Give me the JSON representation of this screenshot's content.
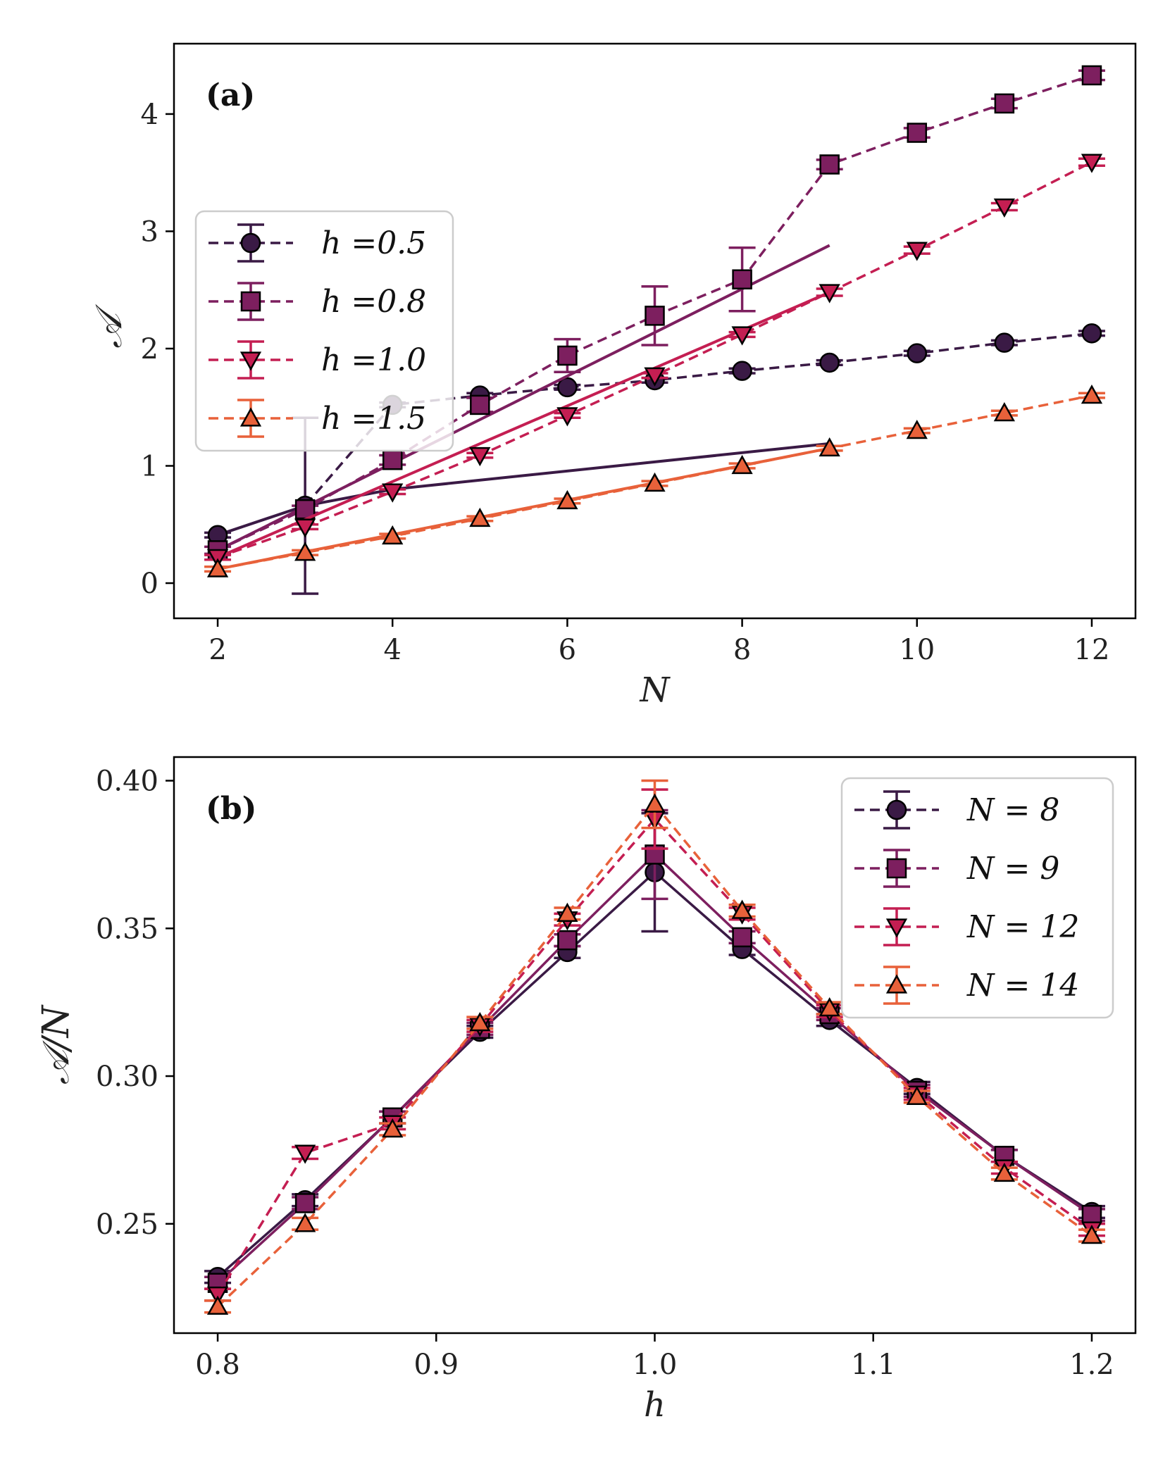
{
  "chart_data": [
    {
      "type": "line",
      "panel_label": "(a)",
      "xlabel": "N",
      "ylabel": "𝒜",
      "xlim": [
        1.5,
        12.5
      ],
      "ylim": [
        -0.3,
        4.6
      ],
      "xticks": [
        2,
        4,
        6,
        8,
        10,
        12
      ],
      "yticks": [
        0,
        1,
        2,
        3,
        4
      ],
      "xtick_labels": [
        "2",
        "4",
        "6",
        "8",
        "10",
        "12"
      ],
      "ytick_labels": [
        "0",
        "1",
        "2",
        "3",
        "4"
      ],
      "legend_position": "center-left",
      "series": [
        {
          "name": "h =0.5",
          "color": "#3a1a45",
          "marker": "circle",
          "x": [
            2,
            3,
            4,
            5,
            6,
            7,
            8,
            9,
            10,
            11,
            12
          ],
          "y": [
            0.41,
            0.66,
            1.52,
            1.6,
            1.67,
            1.73,
            1.81,
            1.88,
            1.96,
            2.05,
            2.13
          ],
          "err": [
            0.02,
            0.75,
            0.02,
            0.02,
            0.02,
            0.02,
            0.02,
            0.02,
            0.02,
            0.02,
            0.02
          ],
          "fit": {
            "x": [
              2,
              3,
              4,
              9
            ],
            "y": [
              0.41,
              0.66,
              0.8,
              1.19
            ]
          }
        },
        {
          "name": "h =0.8",
          "color": "#7d1f5f",
          "marker": "square",
          "x": [
            2,
            3,
            4,
            5,
            6,
            7,
            8,
            9,
            10,
            11,
            12
          ],
          "y": [
            0.28,
            0.63,
            1.05,
            1.52,
            1.94,
            2.28,
            2.59,
            3.57,
            3.84,
            4.09,
            4.33
          ],
          "err": [
            0.03,
            0.03,
            0.04,
            0.06,
            0.14,
            0.25,
            0.27,
            0.04,
            0.04,
            0.04,
            0.04
          ],
          "fit": {
            "x": [
              2,
              9
            ],
            "y": [
              0.28,
              2.88
            ]
          }
        },
        {
          "name": "h =1.0",
          "color": "#c41e52",
          "marker": "triangle-down",
          "x": [
            2,
            3,
            4,
            5,
            6,
            7,
            8,
            9,
            10,
            11,
            12
          ],
          "y": [
            0.22,
            0.48,
            0.78,
            1.09,
            1.43,
            1.77,
            2.12,
            2.48,
            2.84,
            3.21,
            3.59
          ],
          "err": [
            0.02,
            0.02,
            0.02,
            0.02,
            0.02,
            0.02,
            0.02,
            0.03,
            0.03,
            0.03,
            0.03
          ],
          "fit": {
            "x": [
              2,
              9
            ],
            "y": [
              0.22,
              2.48
            ]
          }
        },
        {
          "name": "h =1.5",
          "color": "#e8613a",
          "marker": "triangle-up",
          "x": [
            2,
            3,
            4,
            5,
            6,
            7,
            8,
            9,
            10,
            11,
            12
          ],
          "y": [
            0.12,
            0.26,
            0.4,
            0.55,
            0.7,
            0.85,
            1.0,
            1.15,
            1.3,
            1.45,
            1.6
          ],
          "err": [
            0.02,
            0.02,
            0.02,
            0.02,
            0.02,
            0.02,
            0.02,
            0.02,
            0.02,
            0.02,
            0.02
          ],
          "fit": {
            "x": [
              2,
              9
            ],
            "y": [
              0.12,
              1.15
            ]
          }
        }
      ]
    },
    {
      "type": "line",
      "panel_label": "(b)",
      "xlabel": "h",
      "ylabel": "𝒜/N",
      "xlim": [
        0.78,
        1.22
      ],
      "ylim": [
        0.213,
        0.408
      ],
      "xticks": [
        0.8,
        0.9,
        1.0,
        1.1,
        1.2
      ],
      "yticks": [
        0.25,
        0.3,
        0.35,
        0.4
      ],
      "xtick_labels": [
        "0.8",
        "0.9",
        "1.0",
        "1.1",
        "1.2"
      ],
      "ytick_labels": [
        "0.25",
        "0.30",
        "0.35",
        "0.40"
      ],
      "legend_position": "top-right",
      "series": [
        {
          "name": "N = 8",
          "color": "#3a1a45",
          "marker": "circle",
          "solid": true,
          "x": [
            0.8,
            0.84,
            0.88,
            0.92,
            0.96,
            1.0,
            1.04,
            1.08,
            1.12,
            1.16,
            1.2
          ],
          "y": [
            0.232,
            0.258,
            0.286,
            0.315,
            0.342,
            0.369,
            0.343,
            0.319,
            0.296,
            0.273,
            0.254
          ],
          "err": [
            0.002,
            0.002,
            0.002,
            0.002,
            0.002,
            0.02,
            0.002,
            0.002,
            0.002,
            0.002,
            0.002
          ]
        },
        {
          "name": "N = 9",
          "color": "#7d1f5f",
          "marker": "square",
          "solid": true,
          "x": [
            0.8,
            0.84,
            0.88,
            0.92,
            0.96,
            1.0,
            1.04,
            1.08,
            1.12,
            1.16,
            1.2
          ],
          "y": [
            0.23,
            0.257,
            0.286,
            0.316,
            0.346,
            0.375,
            0.347,
            0.321,
            0.295,
            0.273,
            0.253
          ],
          "err": [
            0.002,
            0.002,
            0.002,
            0.002,
            0.002,
            0.015,
            0.002,
            0.002,
            0.002,
            0.002,
            0.002
          ]
        },
        {
          "name": "N = 12",
          "color": "#c41e52",
          "marker": "triangle-down",
          "solid": false,
          "x": [
            0.8,
            0.84,
            0.88,
            0.92,
            0.96,
            1.0,
            1.04,
            1.08,
            1.12,
            1.16,
            1.2
          ],
          "y": [
            0.226,
            0.274,
            0.284,
            0.317,
            0.353,
            0.387,
            0.355,
            0.322,
            0.294,
            0.269,
            0.248
          ],
          "err": [
            0.002,
            0.002,
            0.002,
            0.002,
            0.002,
            0.01,
            0.002,
            0.002,
            0.002,
            0.002,
            0.002
          ]
        },
        {
          "name": "N = 14",
          "color": "#e8613a",
          "marker": "triangle-up",
          "solid": false,
          "x": [
            0.8,
            0.84,
            0.88,
            0.92,
            0.96,
            1.0,
            1.04,
            1.08,
            1.12,
            1.16,
            1.2
          ],
          "y": [
            0.222,
            0.25,
            0.282,
            0.318,
            0.355,
            0.392,
            0.356,
            0.323,
            0.293,
            0.267,
            0.246
          ],
          "err": [
            0.002,
            0.002,
            0.002,
            0.002,
            0.002,
            0.008,
            0.002,
            0.002,
            0.002,
            0.002,
            0.002
          ]
        }
      ]
    }
  ]
}
